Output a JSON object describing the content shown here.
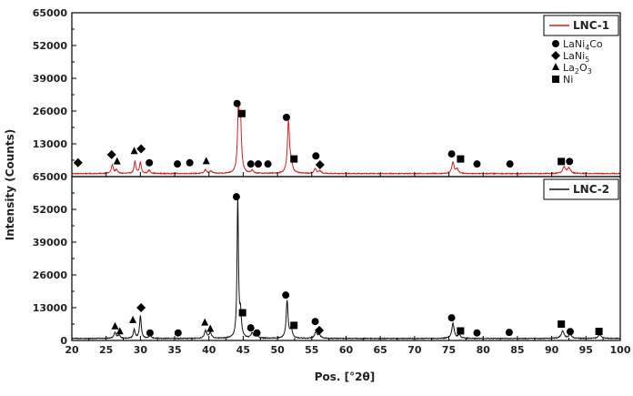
{
  "chart_data": {
    "type": "line",
    "xlabel": "Pos. [°2θ]",
    "ylabel": "Intensity (Counts)",
    "xlim": [
      20,
      100
    ],
    "ylim": [
      0,
      65000
    ],
    "x_ticks": [
      "20",
      "25",
      "30",
      "35",
      "40",
      "45",
      "50",
      "55",
      "60",
      "65",
      "70",
      "75",
      "80",
      "85",
      "90",
      "95",
      "100"
    ],
    "y_ticks": [
      "0",
      "13000",
      "26000",
      "39000",
      "52000",
      "65000"
    ],
    "phase_legend": [
      {
        "marker": "circle",
        "label": "LaNi",
        "sub": "4",
        "label2": "Co"
      },
      {
        "marker": "diamond",
        "label": "LaNi",
        "sub": "5",
        "label2": ""
      },
      {
        "marker": "triangle",
        "label": "La",
        "sub": "2",
        "label2": "O",
        "sub2": "3"
      },
      {
        "marker": "square",
        "label": "Ni",
        "sub": "",
        "label2": ""
      }
    ],
    "panels": [
      {
        "name": "LNC-1",
        "color": "#d62020",
        "baseline": 1200,
        "noise": 350,
        "peaks": [
          {
            "x": 25.9,
            "h": 3300,
            "w": 0.18
          },
          {
            "x": 26.5,
            "h": 1500,
            "w": 0.18
          },
          {
            "x": 29.2,
            "h": 4800,
            "w": 0.15
          },
          {
            "x": 30.0,
            "h": 4500,
            "w": 0.15
          },
          {
            "x": 31.3,
            "h": 1300,
            "w": 0.2
          },
          {
            "x": 39.5,
            "h": 1500,
            "w": 0.2
          },
          {
            "x": 40.3,
            "h": 900,
            "w": 0.2
          },
          {
            "x": 44.3,
            "h": 24500,
            "w": 0.16
          },
          {
            "x": 44.6,
            "h": 19500,
            "w": 0.16
          },
          {
            "x": 46.3,
            "h": 1100,
            "w": 0.2
          },
          {
            "x": 51.6,
            "h": 20500,
            "w": 0.18
          },
          {
            "x": 52.0,
            "h": 3500,
            "w": 0.2
          },
          {
            "x": 55.5,
            "h": 2000,
            "w": 0.2
          },
          {
            "x": 56.2,
            "h": 1000,
            "w": 0.2
          },
          {
            "x": 75.6,
            "h": 4500,
            "w": 0.2
          },
          {
            "x": 76.2,
            "h": 1800,
            "w": 0.2
          },
          {
            "x": 91.8,
            "h": 2500,
            "w": 0.25
          },
          {
            "x": 92.5,
            "h": 2200,
            "w": 0.25
          }
        ],
        "markers": [
          {
            "type": "diamond",
            "x": 20.9,
            "y": 5500
          },
          {
            "type": "diamond",
            "x": 25.8,
            "y": 8700
          },
          {
            "type": "triangle",
            "x": 26.6,
            "y": 5900
          },
          {
            "type": "triangle",
            "x": 29.1,
            "y": 10000
          },
          {
            "type": "diamond",
            "x": 30.1,
            "y": 11000
          },
          {
            "type": "circle",
            "x": 31.3,
            "y": 5500
          },
          {
            "type": "circle",
            "x": 35.4,
            "y": 5000
          },
          {
            "type": "circle",
            "x": 37.2,
            "y": 5500
          },
          {
            "type": "triangle",
            "x": 39.6,
            "y": 6000
          },
          {
            "type": "circle",
            "x": 44.1,
            "y": 29000
          },
          {
            "type": "square",
            "x": 44.8,
            "y": 25000
          },
          {
            "type": "circle",
            "x": 46.1,
            "y": 5000
          },
          {
            "type": "circle",
            "x": 47.2,
            "y": 5000
          },
          {
            "type": "circle",
            "x": 48.6,
            "y": 5000
          },
          {
            "type": "circle",
            "x": 51.3,
            "y": 23500
          },
          {
            "type": "square",
            "x": 52.4,
            "y": 7000
          },
          {
            "type": "circle",
            "x": 55.6,
            "y": 8200
          },
          {
            "type": "diamond",
            "x": 56.2,
            "y": 4700
          },
          {
            "type": "circle",
            "x": 75.4,
            "y": 9000
          },
          {
            "type": "square",
            "x": 76.7,
            "y": 7000
          },
          {
            "type": "circle",
            "x": 79.1,
            "y": 5000
          },
          {
            "type": "circle",
            "x": 83.9,
            "y": 5000
          },
          {
            "type": "square",
            "x": 91.4,
            "y": 6000
          },
          {
            "type": "circle",
            "x": 92.6,
            "y": 6000
          }
        ]
      },
      {
        "name": "LNC-2",
        "color": "#111111",
        "baseline": 800,
        "noise": 300,
        "peaks": [
          {
            "x": 26.3,
            "h": 2500,
            "w": 0.18
          },
          {
            "x": 26.9,
            "h": 1200,
            "w": 0.18
          },
          {
            "x": 29.1,
            "h": 3500,
            "w": 0.15
          },
          {
            "x": 30.0,
            "h": 9000,
            "w": 0.15
          },
          {
            "x": 31.4,
            "h": 1200,
            "w": 0.2
          },
          {
            "x": 39.5,
            "h": 3000,
            "w": 0.2
          },
          {
            "x": 40.2,
            "h": 2200,
            "w": 0.2
          },
          {
            "x": 44.2,
            "h": 56000,
            "w": 0.12
          },
          {
            "x": 44.6,
            "h": 9000,
            "w": 0.15
          },
          {
            "x": 46.3,
            "h": 2000,
            "w": 0.2
          },
          {
            "x": 47.0,
            "h": 1200,
            "w": 0.2
          },
          {
            "x": 51.4,
            "h": 15000,
            "w": 0.16
          },
          {
            "x": 52.0,
            "h": 3500,
            "w": 0.2
          },
          {
            "x": 55.6,
            "h": 2500,
            "w": 0.2
          },
          {
            "x": 56.1,
            "h": 1500,
            "w": 0.2
          },
          {
            "x": 75.6,
            "h": 6000,
            "w": 0.2
          },
          {
            "x": 76.5,
            "h": 1500,
            "w": 0.2
          },
          {
            "x": 91.6,
            "h": 3000,
            "w": 0.25
          },
          {
            "x": 92.7,
            "h": 1500,
            "w": 0.25
          },
          {
            "x": 97.0,
            "h": 1500,
            "w": 0.25
          }
        ],
        "markers": [
          {
            "type": "triangle",
            "x": 26.3,
            "y": 5500
          },
          {
            "type": "triangle",
            "x": 27.0,
            "y": 3500
          },
          {
            "type": "triangle",
            "x": 28.9,
            "y": 8000
          },
          {
            "type": "diamond",
            "x": 30.1,
            "y": 13000
          },
          {
            "type": "circle",
            "x": 31.4,
            "y": 3000
          },
          {
            "type": "circle",
            "x": 35.5,
            "y": 3000
          },
          {
            "type": "triangle",
            "x": 39.4,
            "y": 7000
          },
          {
            "type": "triangle",
            "x": 40.2,
            "y": 4500
          },
          {
            "type": "circle",
            "x": 44.0,
            "y": 57000
          },
          {
            "type": "square",
            "x": 44.9,
            "y": 11000
          },
          {
            "type": "circle",
            "x": 46.1,
            "y": 5000
          },
          {
            "type": "circle",
            "x": 47.0,
            "y": 3000
          },
          {
            "type": "circle",
            "x": 51.2,
            "y": 18000
          },
          {
            "type": "square",
            "x": 52.4,
            "y": 6000
          },
          {
            "type": "circle",
            "x": 55.5,
            "y": 7500
          },
          {
            "type": "diamond",
            "x": 56.1,
            "y": 4000
          },
          {
            "type": "circle",
            "x": 75.4,
            "y": 9000
          },
          {
            "type": "square",
            "x": 76.7,
            "y": 3800
          },
          {
            "type": "circle",
            "x": 79.1,
            "y": 3000
          },
          {
            "type": "circle",
            "x": 83.8,
            "y": 3200
          },
          {
            "type": "square",
            "x": 91.4,
            "y": 6500
          },
          {
            "type": "circle",
            "x": 92.7,
            "y": 3500
          },
          {
            "type": "square",
            "x": 96.9,
            "y": 3600
          }
        ]
      }
    ]
  }
}
